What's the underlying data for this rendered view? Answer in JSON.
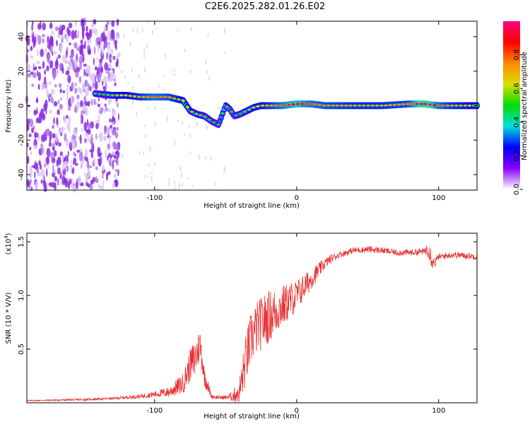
{
  "title": "C2E6.2025.282.01.26.E02",
  "chart_data": [
    {
      "type": "heatmap",
      "name": "spectrogram",
      "xlabel": "Height of straight line (km)",
      "ylabel": "Frequency (Hz)",
      "xlim": [
        -190,
        127
      ],
      "ylim": [
        -49,
        49
      ],
      "xticks": [
        -100,
        0,
        100
      ],
      "xtick_labels": [
        "-100",
        "0",
        "100"
      ],
      "yticks": [
        -40,
        -20,
        0,
        20,
        40
      ],
      "ytick_labels": [
        "-40",
        "-20",
        "0",
        "20",
        "40"
      ],
      "colorbar": {
        "label": "Normalized spectral amplitude",
        "range": [
          0,
          1
        ],
        "ticks": [
          0,
          0.2,
          0.4,
          0.6,
          0.8
        ],
        "tick_labels": [
          "0.0",
          "0.2",
          "0.4",
          "0.6",
          "0.8"
        ],
        "colors": [
          "#ffffff",
          "#8800ff",
          "#0000ff",
          "#00dddd",
          "#00dd00",
          "#dddd00",
          "#ff8800",
          "#ff0000",
          "#ff0080"
        ]
      },
      "signal_track": {
        "x": [
          -142,
          -130,
          -120,
          -110,
          -100,
          -90,
          -80,
          -75,
          -70,
          -65,
          -60,
          -55,
          -50,
          -47,
          -44,
          -40,
          -35,
          -30,
          -25,
          -20,
          -10,
          0,
          10,
          20,
          40,
          60,
          80,
          90,
          100,
          110,
          127
        ],
        "y": [
          7,
          6,
          6,
          5,
          5,
          5,
          3,
          -3,
          -5,
          -6,
          -9,
          -11,
          0,
          -2,
          -6,
          -5,
          -3,
          -1,
          0,
          0,
          0,
          1,
          1,
          0,
          0,
          0,
          1,
          1,
          0,
          0,
          0
        ],
        "amplitude": [
          0.35,
          0.45,
          0.55,
          0.6,
          0.7,
          0.65,
          0.55,
          0.5,
          0.45,
          0.45,
          0.4,
          0.35,
          0.45,
          0.4,
          0.35,
          0.4,
          0.45,
          0.5,
          0.55,
          0.6,
          0.7,
          0.8,
          0.7,
          0.65,
          0.6,
          0.6,
          0.65,
          0.95,
          0.7,
          0.6,
          0.55
        ]
      },
      "noise_region_x": [
        -190,
        -125
      ]
    },
    {
      "type": "line",
      "name": "snr",
      "xlabel": "Height of straight line (km)",
      "ylabel": "SNR (10 * V/V)",
      "scale_label": "(x10",
      "scale_exponent": "4",
      "scale_suffix": ")",
      "xlim": [
        -190,
        127
      ],
      "ylim": [
        0,
        1.58
      ],
      "xticks": [
        -100,
        0,
        100
      ],
      "xtick_labels": [
        "-100",
        "0",
        "100"
      ],
      "yticks": [
        0.5,
        1.0,
        1.5
      ],
      "ytick_labels": [
        "0.5",
        "1.0",
        "1.5"
      ],
      "line_color": "#e83030",
      "envelope": {
        "x": [
          -190,
          -150,
          -130,
          -110,
          -100,
          -90,
          -80,
          -75,
          -72,
          -68,
          -65,
          -60,
          -55,
          -50,
          -45,
          -40,
          -38,
          -35,
          -32,
          -28,
          -20,
          -10,
          0,
          10,
          20,
          25,
          30,
          40,
          50,
          60,
          70,
          80,
          90,
          93,
          95,
          97,
          100,
          110,
          120,
          127
        ],
        "y": [
          0.02,
          0.03,
          0.04,
          0.06,
          0.08,
          0.1,
          0.18,
          0.35,
          0.4,
          0.55,
          0.25,
          0.06,
          0.05,
          0.05,
          0.06,
          0.12,
          0.25,
          0.45,
          0.6,
          0.7,
          0.8,
          0.9,
          1.0,
          1.15,
          1.3,
          1.35,
          1.38,
          1.42,
          1.43,
          1.42,
          1.4,
          1.4,
          1.41,
          1.45,
          1.35,
          1.3,
          1.36,
          1.38,
          1.37,
          1.36
        ],
        "jitter": [
          0.005,
          0.01,
          0.01,
          0.02,
          0.03,
          0.05,
          0.1,
          0.15,
          0.2,
          0.15,
          0.1,
          0.02,
          0.02,
          0.02,
          0.05,
          0.15,
          0.2,
          0.25,
          0.25,
          0.25,
          0.25,
          0.2,
          0.15,
          0.1,
          0.05,
          0.04,
          0.03,
          0.03,
          0.03,
          0.03,
          0.03,
          0.03,
          0.03,
          0.1,
          0.1,
          0.05,
          0.03,
          0.03,
          0.03,
          0.03
        ]
      }
    }
  ]
}
